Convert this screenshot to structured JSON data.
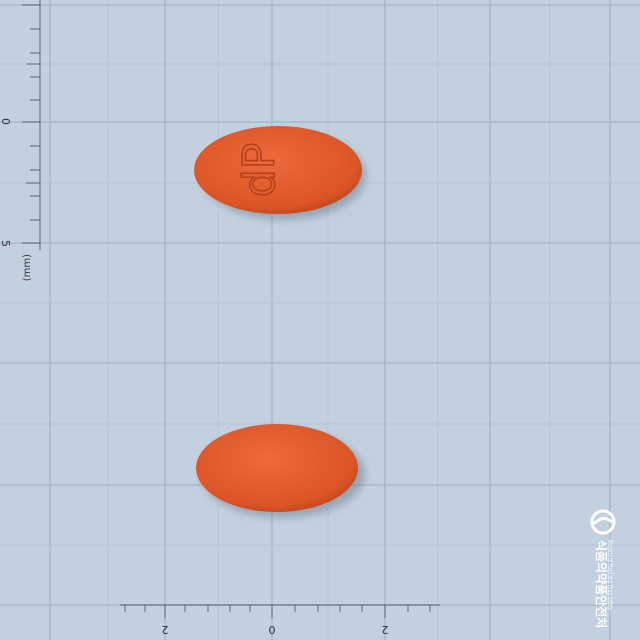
{
  "ruler": {
    "unit": "(mm)",
    "left_labels": [
      "0",
      "5"
    ],
    "bottom_labels": [
      "2",
      "0",
      "2"
    ]
  },
  "pill": {
    "imprint": "dP"
  },
  "watermark": {
    "korean": "식품의약품안전처",
    "english": "Ministry of Food and Drug Safety"
  }
}
